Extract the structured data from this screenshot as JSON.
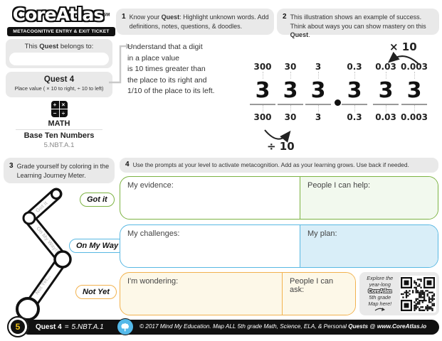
{
  "brand": {
    "logo": "CoreAtlas",
    "logo_mark": "SM",
    "tagline": "METACOGNITIVE ENTRY & EXIT TICKET"
  },
  "owner": {
    "pre": "This ",
    "bold": "Quest",
    "post": " belongs to:",
    "value": ""
  },
  "quest": {
    "title": "Quest 4",
    "subtitle": "Place value ( × 10 to right, ÷ 10 to left)"
  },
  "subject": {
    "icon_glyphs": [
      "+",
      "×",
      "−",
      "÷"
    ],
    "name": "MATH",
    "topic": "Base Ten Numbers",
    "standard": "5.NBT.A.1"
  },
  "steps": {
    "s1": {
      "num": "1",
      "pre": "Know your ",
      "bold": "Quest",
      "post": ": Highlight unknown words. Add definitions, notes, questions, & doodles."
    },
    "s2": {
      "num": "2",
      "pre": "This illustration shows an example of success. Think about ways you can show mastery on this ",
      "bold": "Quest",
      "post": "."
    },
    "s3": {
      "num": "3",
      "text": "Grade yourself by coloring in the Learning Journey Meter."
    },
    "s4": {
      "num": "4",
      "text": "Use the prompts at your level to activate metacognition. Add as your learning grows. Use back if needed."
    }
  },
  "goal": {
    "lines": [
      "Understand that a digit",
      "in a place value",
      "is 10 times greater than",
      "the place to its right and",
      "1/10 of the place to its left."
    ]
  },
  "diagram": {
    "type": "place-value-diagram",
    "digits": [
      "3",
      "3",
      "3",
      "3",
      "3",
      "3"
    ],
    "decimal": ".",
    "top_labels": [
      "300",
      "30",
      "3",
      "0.3",
      "0.03",
      "0.003"
    ],
    "bottom_labels": [
      "300",
      "30",
      "3",
      "0.3",
      "0.03",
      "0.003"
    ],
    "times_label": "× 10",
    "divide_label": "÷ 10"
  },
  "meter": {
    "levels": [
      {
        "label": "Got it",
        "inner": "Got it",
        "color": "#7cb342"
      },
      {
        "label": "On My Way",
        "inner": "On My Way!!",
        "color": "#58b8e3"
      },
      {
        "label": "Not Yet",
        "inner": "Not Yet...",
        "color": "#f2b24e"
      }
    ]
  },
  "prompts": {
    "evidence": "My evidence:",
    "help": "People I can help:",
    "challenges": "My challenges:",
    "plan": "My plan:",
    "wondering": "I'm wondering:",
    "ask": "People I can ask:"
  },
  "qr": {
    "line1": "Explore the",
    "line2": "year-long",
    "brand": "CoreAtlas",
    "line3": "5th grade",
    "line4": "Map here!"
  },
  "footer": {
    "badge": "5",
    "quest": "Quest 4",
    "eq": "=",
    "standard": "5.NBT.A.1",
    "copyright": "© 2017 Mind My Education.",
    "map_pre": " Map ALL 5th grade Math, Science, ELA, & Personal ",
    "map_bold": "Quests",
    "map_at": " @ ",
    "site": "www.CoreAtlas.io"
  },
  "colors": {
    "green": "#7cb342",
    "blue": "#58b8e3",
    "orange": "#f2b24e",
    "gray_box": "#e9e9e9",
    "fill_green": "#f2f9ee",
    "fill_blue": "#d9eef8",
    "fill_cream": "#fdf8e8",
    "badge_yellow": "#f5c518",
    "brain_blue": "#54b9e9"
  }
}
